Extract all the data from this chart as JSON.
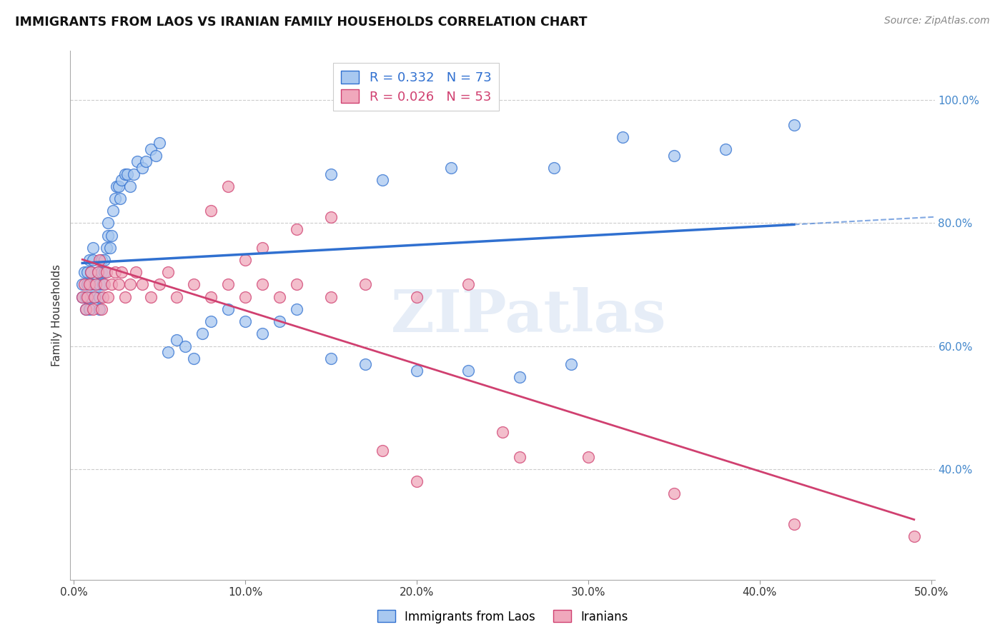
{
  "title": "IMMIGRANTS FROM LAOS VS IRANIAN FAMILY HOUSEHOLDS CORRELATION CHART",
  "source": "Source: ZipAtlas.com",
  "ylabel": "Family Households",
  "legend_label1": "Immigrants from Laos",
  "legend_label2": "Iranians",
  "R1": 0.332,
  "N1": 73,
  "R2": 0.026,
  "N2": 53,
  "color1": "#A8C8F0",
  "color2": "#F0A8BC",
  "line_color1": "#3070D0",
  "line_color2": "#D04070",
  "xmin": 0.0,
  "xmax": 0.5,
  "ymin": 0.22,
  "ymax": 1.08,
  "yticks": [
    0.4,
    0.6,
    0.8,
    1.0
  ],
  "ytick_labels": [
    "40.0%",
    "60.0%",
    "80.0%",
    "100.0%"
  ],
  "xticks": [
    0.0,
    0.1,
    0.2,
    0.3,
    0.4,
    0.5
  ],
  "xtick_labels": [
    "0.0%",
    "10.0%",
    "20.0%",
    "30.0%",
    "40.0%",
    "50.0%"
  ],
  "laos_x": [
    0.005,
    0.005,
    0.006,
    0.007,
    0.007,
    0.008,
    0.008,
    0.009,
    0.009,
    0.01,
    0.01,
    0.01,
    0.011,
    0.011,
    0.012,
    0.012,
    0.013,
    0.013,
    0.014,
    0.015,
    0.015,
    0.015,
    0.016,
    0.016,
    0.017,
    0.018,
    0.018,
    0.019,
    0.02,
    0.02,
    0.021,
    0.022,
    0.023,
    0.024,
    0.025,
    0.026,
    0.027,
    0.028,
    0.03,
    0.031,
    0.033,
    0.035,
    0.037,
    0.04,
    0.042,
    0.045,
    0.048,
    0.05,
    0.055,
    0.06,
    0.065,
    0.07,
    0.075,
    0.08,
    0.09,
    0.1,
    0.11,
    0.12,
    0.13,
    0.15,
    0.17,
    0.2,
    0.23,
    0.26,
    0.29,
    0.15,
    0.18,
    0.22,
    0.28,
    0.32,
    0.35,
    0.38,
    0.42
  ],
  "laos_y": [
    0.68,
    0.7,
    0.72,
    0.66,
    0.68,
    0.7,
    0.72,
    0.74,
    0.66,
    0.68,
    0.7,
    0.72,
    0.74,
    0.76,
    0.68,
    0.7,
    0.68,
    0.7,
    0.72,
    0.66,
    0.68,
    0.7,
    0.72,
    0.74,
    0.7,
    0.72,
    0.74,
    0.76,
    0.78,
    0.8,
    0.76,
    0.78,
    0.82,
    0.84,
    0.86,
    0.86,
    0.84,
    0.87,
    0.88,
    0.88,
    0.86,
    0.88,
    0.9,
    0.89,
    0.9,
    0.92,
    0.91,
    0.93,
    0.59,
    0.61,
    0.6,
    0.58,
    0.62,
    0.64,
    0.66,
    0.64,
    0.62,
    0.64,
    0.66,
    0.58,
    0.57,
    0.56,
    0.56,
    0.55,
    0.57,
    0.88,
    0.87,
    0.89,
    0.89,
    0.94,
    0.91,
    0.92,
    0.96
  ],
  "iran_x": [
    0.005,
    0.006,
    0.007,
    0.008,
    0.009,
    0.01,
    0.011,
    0.012,
    0.013,
    0.014,
    0.015,
    0.016,
    0.017,
    0.018,
    0.019,
    0.02,
    0.022,
    0.024,
    0.026,
    0.028,
    0.03,
    0.033,
    0.036,
    0.04,
    0.045,
    0.05,
    0.055,
    0.06,
    0.07,
    0.08,
    0.09,
    0.1,
    0.11,
    0.12,
    0.13,
    0.15,
    0.17,
    0.2,
    0.23,
    0.26,
    0.08,
    0.09,
    0.1,
    0.11,
    0.13,
    0.15,
    0.18,
    0.2,
    0.25,
    0.3,
    0.35,
    0.42,
    0.49
  ],
  "iran_y": [
    0.68,
    0.7,
    0.66,
    0.68,
    0.7,
    0.72,
    0.66,
    0.68,
    0.7,
    0.72,
    0.74,
    0.66,
    0.68,
    0.7,
    0.72,
    0.68,
    0.7,
    0.72,
    0.7,
    0.72,
    0.68,
    0.7,
    0.72,
    0.7,
    0.68,
    0.7,
    0.72,
    0.68,
    0.7,
    0.68,
    0.7,
    0.68,
    0.7,
    0.68,
    0.7,
    0.68,
    0.7,
    0.68,
    0.7,
    0.42,
    0.82,
    0.86,
    0.74,
    0.76,
    0.79,
    0.81,
    0.43,
    0.38,
    0.46,
    0.42,
    0.36,
    0.31,
    0.29
  ],
  "watermark": "ZIPatlas",
  "background_color": "#FFFFFF",
  "grid_color": "#CCCCCC"
}
